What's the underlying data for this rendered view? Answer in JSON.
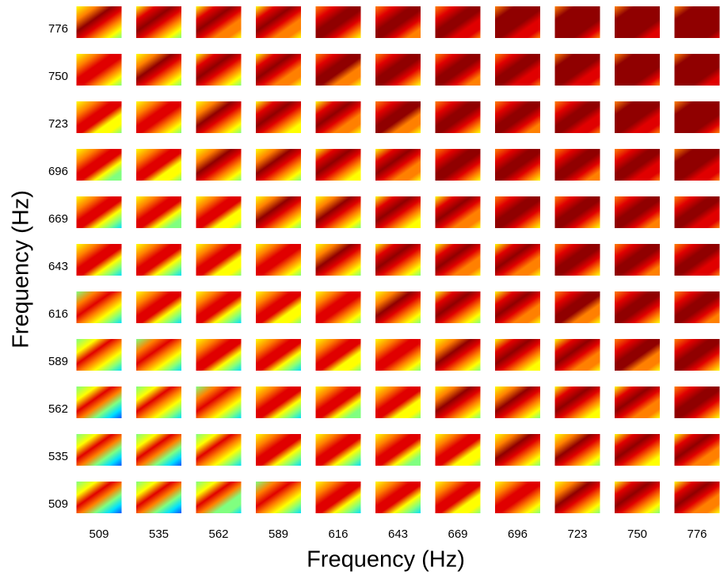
{
  "x_axis": {
    "label": "Frequency (Hz)",
    "ticks": [
      509,
      535,
      562,
      589,
      616,
      643,
      669,
      696,
      723,
      750,
      776
    ]
  },
  "y_axis": {
    "label": "Frequency (Hz)",
    "ticks": [
      509,
      535,
      562,
      589,
      616,
      643,
      669,
      696,
      723,
      750,
      776
    ]
  }
}
